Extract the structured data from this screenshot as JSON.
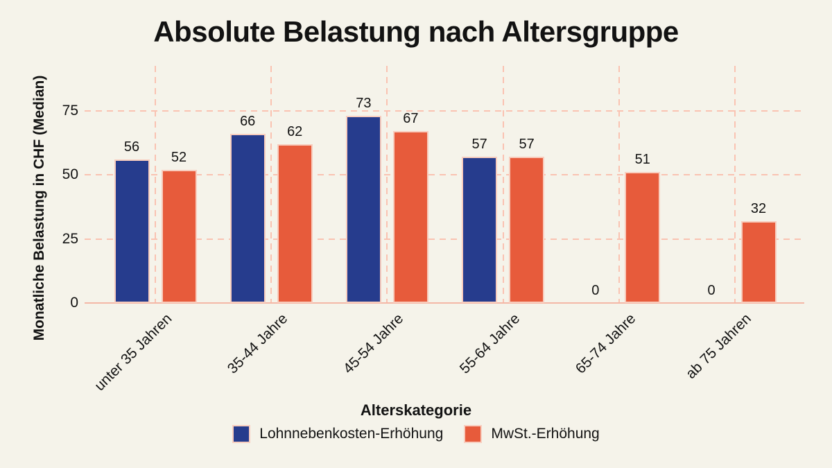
{
  "colors": {
    "background": "#f5f3ea",
    "text": "#121212",
    "series_blue": "#263c8d",
    "series_orange": "#e75b3b",
    "gridline": "#fac2b1",
    "axis_baseline": "#f4b7a6",
    "bar_border": "#f8cdbe"
  },
  "chart_data": {
    "type": "bar",
    "title": "Absolute Belastung nach Altersgruppe",
    "categories": [
      "unter 35 Jahren",
      "35-44 Jahre",
      "45-54 Jahre",
      "55-64 Jahre",
      "65-74 Jahre",
      "ab 75 Jahren"
    ],
    "series": [
      {
        "name": "Lohnnebenkosten-Erhöhung",
        "color": "#263c8d",
        "values": [
          56,
          66,
          73,
          57,
          0,
          0
        ]
      },
      {
        "name": "MwSt.-Erhöhung",
        "color": "#e75b3b",
        "values": [
          52,
          62,
          67,
          57,
          51,
          32
        ]
      }
    ],
    "xlabel": "Alterskategorie",
    "ylabel": "Monatliche Belastung in CHF (Median)",
    "yticks": [
      0,
      25,
      50,
      75
    ],
    "ylim": [
      0,
      92.5
    ],
    "grid": {
      "horizontal": "dashed at 25/50/75",
      "vertical": "dashed at category centers",
      "baseline": "solid at 0"
    },
    "legend_position": "bottom",
    "bar_value_labels": true
  }
}
